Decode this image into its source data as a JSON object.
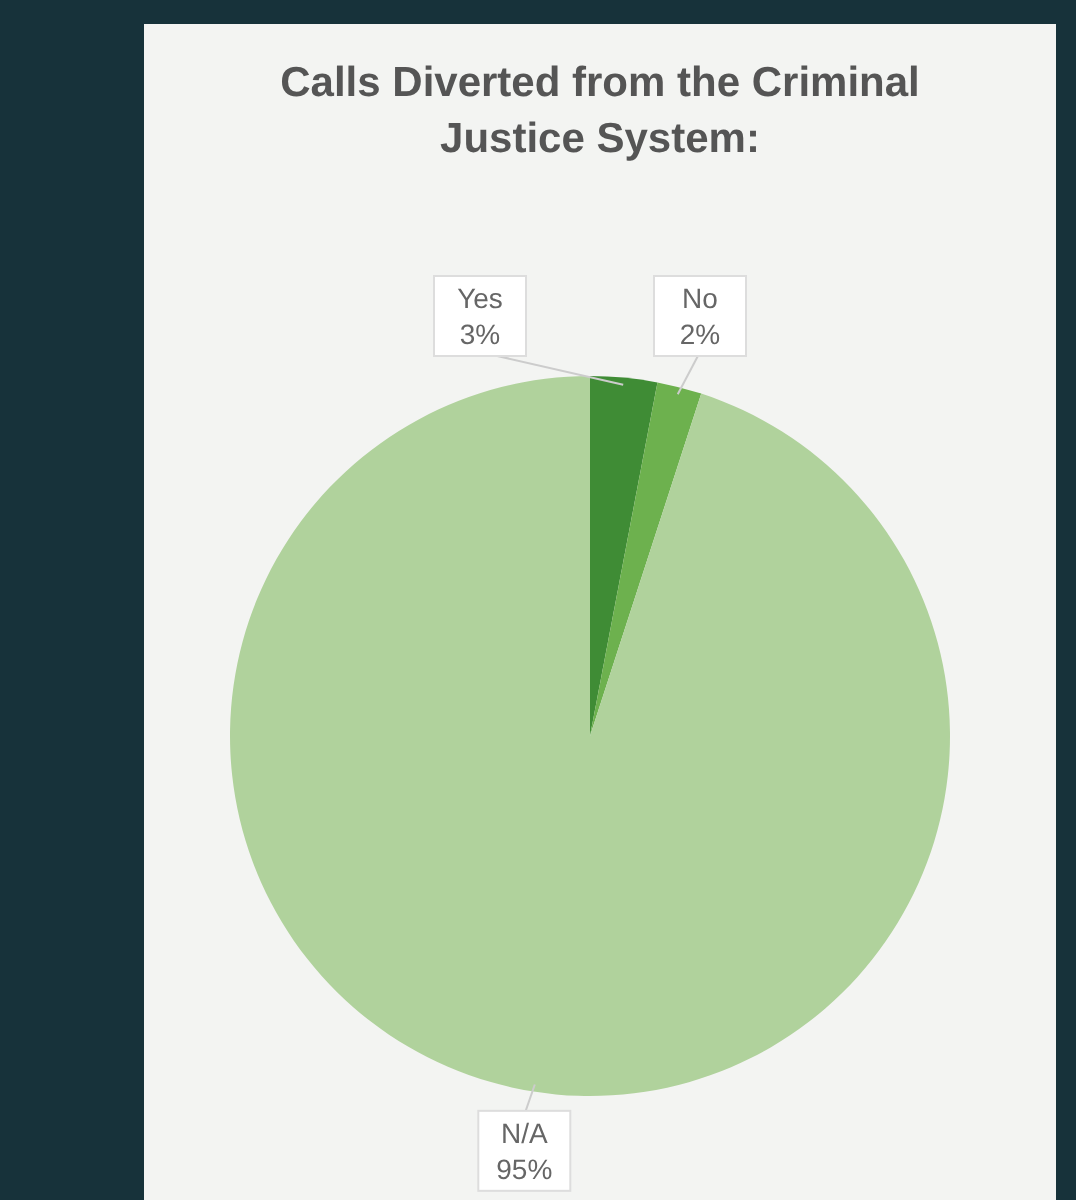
{
  "chart_data": {
    "type": "pie",
    "title": "Calls Diverted from the Criminal Justice System:",
    "categories": [
      "Yes",
      "No",
      "N/A"
    ],
    "values": [
      3,
      2,
      95
    ],
    "colors": [
      "#3f8c35",
      "#6db14e",
      "#b0d29c"
    ],
    "value_labels": [
      "3%",
      "2%",
      "95%"
    ]
  }
}
